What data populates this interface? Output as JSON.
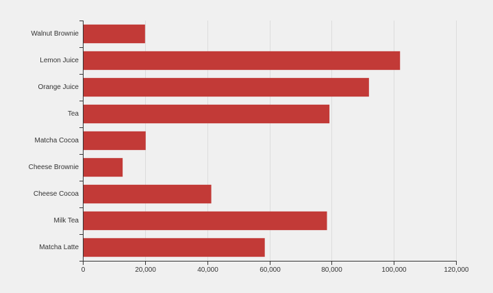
{
  "chart_data": {
    "type": "bar",
    "orientation": "horizontal",
    "title": "",
    "xlabel": "",
    "ylabel": "",
    "categories": [
      "Walnut Brownie",
      "Lemon Juice",
      "Orange Juice",
      "Tea",
      "Matcha Cocoa",
      "Cheese Brownie",
      "Cheese Cocoa",
      "Milk Tea",
      "Matcha Latte"
    ],
    "values": [
      20000,
      102000,
      92000,
      79300,
      20200,
      12800,
      41300,
      78500,
      58500
    ],
    "xlim": [
      0,
      120000
    ],
    "x_ticks": [
      0,
      20000,
      40000,
      60000,
      80000,
      100000,
      120000
    ],
    "x_tick_labels": [
      "0",
      "20,000",
      "40,000",
      "60,000",
      "80,000",
      "100,000",
      "120,000"
    ],
    "grid": "vertical",
    "legend": "none",
    "colors": {
      "bar": "#c23a37",
      "background": "#f0f0f0",
      "grid": "#dcdcdc",
      "axis": "#333333"
    }
  }
}
